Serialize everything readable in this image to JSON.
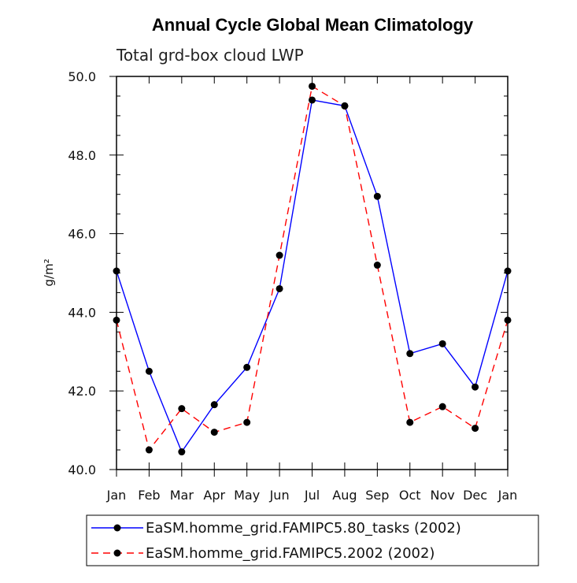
{
  "chart_data": {
    "type": "line",
    "title": "Annual Cycle Global Mean Climatology",
    "subtitle": "Total grd-box cloud LWP",
    "ylabel": "g/m²",
    "xlabel": "",
    "ylim": [
      40.0,
      50.0
    ],
    "y_ticks": [
      "40.0",
      "42.0",
      "44.0",
      "46.0",
      "48.0",
      "50.0"
    ],
    "y_tick_values": [
      40,
      42,
      44,
      46,
      48,
      50
    ],
    "categories": [
      "Jan",
      "Feb",
      "Mar",
      "Apr",
      "May",
      "Jun",
      "Jul",
      "Aug",
      "Sep",
      "Oct",
      "Nov",
      "Dec",
      "Jan"
    ],
    "series": [
      {
        "name": "EaSM.homme_grid.FAMIPC5.80_tasks (2002)",
        "color": "#0000ff",
        "dash": "solid",
        "values": [
          45.05,
          42.5,
          40.45,
          41.65,
          42.6,
          44.6,
          49.4,
          49.25,
          46.95,
          42.95,
          43.2,
          42.1,
          45.05
        ]
      },
      {
        "name": "EaSM.homme_grid.FAMIPC5.2002 (2002)",
        "color": "#ff0000",
        "dash": "dashed",
        "values": [
          43.8,
          40.5,
          41.55,
          40.95,
          41.2,
          45.45,
          49.75,
          49.25,
          45.2,
          41.2,
          41.6,
          41.05,
          43.8
        ]
      }
    ],
    "legend_position": "bottom"
  }
}
